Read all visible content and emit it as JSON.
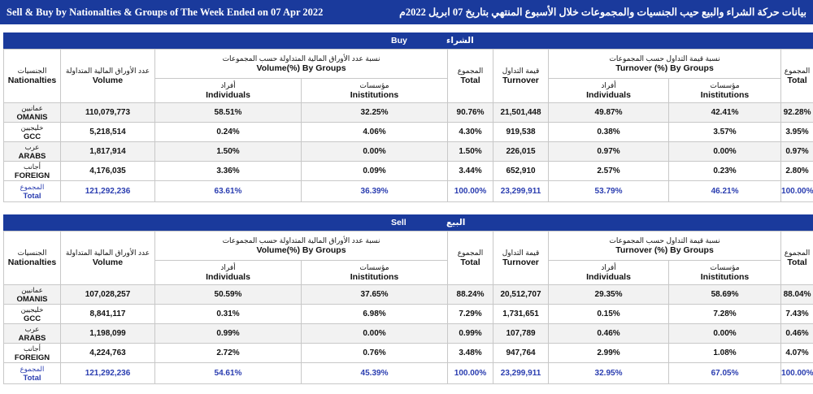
{
  "title": {
    "en": "Sell & Buy by Nationalties & Groups of The Week Ended on 07 Apr 2022",
    "ar": "بيانات حركة الشراء والبيع حيب الجنسيات والمجموعات خلال الأسبوع المنتهي  بتاريخ 07 ابريل  2022م"
  },
  "headers": {
    "nationalities_ar": "الجنسيات",
    "nationalities_en": "Nationalties",
    "volume_ar": "عدد الأوراق المالية المتداولة",
    "volume_en": "Volume",
    "volume_groups_ar": "نسبة عدد الأوراق المالية المتداولة حسب المجموعات",
    "volume_groups_en": "Volume(%) By Groups",
    "individuals_ar": "أفراد",
    "individuals_en": "Individuals",
    "institutions_ar": "مؤسسات",
    "institutions_en": "Inistitutions",
    "total_ar": "المجموع",
    "total_en": "Total",
    "turnover_ar": "قيمة التداول",
    "turnover_en": "Turnover",
    "turnover_groups_ar": "نسبة قيمة التداول حسب المجموعات",
    "turnover_groups_en": "Turnover (%) By Groups"
  },
  "buy": {
    "band_en": "Buy",
    "band_ar": "الشراء",
    "rows": [
      {
        "ar": "عمانيين",
        "en": "OMANIS",
        "volume": "110,079,773",
        "vol_ind": "58.51%",
        "vol_inst": "32.25%",
        "vol_total": "90.76%",
        "turnover": "21,501,448",
        "to_ind": "49.87%",
        "to_inst": "42.41%",
        "to_total": "92.28%"
      },
      {
        "ar": "خليجيين",
        "en": "GCC",
        "volume": "5,218,514",
        "vol_ind": "0.24%",
        "vol_inst": "4.06%",
        "vol_total": "4.30%",
        "turnover": "919,538",
        "to_ind": "0.38%",
        "to_inst": "3.57%",
        "to_total": "3.95%"
      },
      {
        "ar": "عرب",
        "en": "ARABS",
        "volume": "1,817,914",
        "vol_ind": "1.50%",
        "vol_inst": "0.00%",
        "vol_total": "1.50%",
        "turnover": "226,015",
        "to_ind": "0.97%",
        "to_inst": "0.00%",
        "to_total": "0.97%"
      },
      {
        "ar": "أجانب",
        "en": "FOREIGN",
        "volume": "4,176,035",
        "vol_ind": "3.36%",
        "vol_inst": "0.09%",
        "vol_total": "3.44%",
        "turnover": "652,910",
        "to_ind": "2.57%",
        "to_inst": "0.23%",
        "to_total": "2.80%"
      }
    ],
    "total": {
      "ar": "المجموع",
      "en": "Total",
      "volume": "121,292,236",
      "vol_ind": "63.61%",
      "vol_inst": "36.39%",
      "vol_total": "100.00%",
      "turnover": "23,299,911",
      "to_ind": "53.79%",
      "to_inst": "46.21%",
      "to_total": "100.00%"
    }
  },
  "sell": {
    "band_en": "Sell",
    "band_ar": "البيع",
    "rows": [
      {
        "ar": "عمانيين",
        "en": "OMANIS",
        "volume": "107,028,257",
        "vol_ind": "50.59%",
        "vol_inst": "37.65%",
        "vol_total": "88.24%",
        "turnover": "20,512,707",
        "to_ind": "29.35%",
        "to_inst": "58.69%",
        "to_total": "88.04%"
      },
      {
        "ar": "خليجيين",
        "en": "GCC",
        "volume": "8,841,117",
        "vol_ind": "0.31%",
        "vol_inst": "6.98%",
        "vol_total": "7.29%",
        "turnover": "1,731,651",
        "to_ind": "0.15%",
        "to_inst": "7.28%",
        "to_total": "7.43%"
      },
      {
        "ar": "عرب",
        "en": "ARABS",
        "volume": "1,198,099",
        "vol_ind": "0.99%",
        "vol_inst": "0.00%",
        "vol_total": "0.99%",
        "turnover": "107,789",
        "to_ind": "0.46%",
        "to_inst": "0.00%",
        "to_total": "0.46%"
      },
      {
        "ar": "أجانب",
        "en": "FOREIGN",
        "volume": "4,224,763",
        "vol_ind": "2.72%",
        "vol_inst": "0.76%",
        "vol_total": "3.48%",
        "turnover": "947,764",
        "to_ind": "2.99%",
        "to_inst": "1.08%",
        "to_total": "4.07%"
      }
    ],
    "total": {
      "ar": "المجموع",
      "en": "Total",
      "volume": "121,292,236",
      "vol_ind": "54.61%",
      "vol_inst": "45.39%",
      "vol_total": "100.00%",
      "turnover": "23,299,911",
      "to_ind": "32.95%",
      "to_inst": "67.05%",
      "to_total": "100.00%"
    }
  }
}
